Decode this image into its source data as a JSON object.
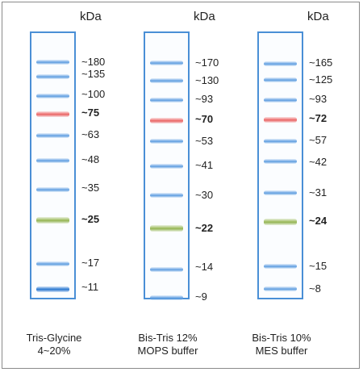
{
  "unit": "kDa",
  "panels": [
    {
      "caption_line1": "Tris-Glycine",
      "caption_line2": "4~20%",
      "markers": [
        {
          "label": "~180",
          "color": "blue",
          "bold": false
        },
        {
          "label": "~135",
          "color": "blue",
          "bold": false
        },
        {
          "label": "~100",
          "color": "blue",
          "bold": false
        },
        {
          "label": "~75",
          "color": "red",
          "bold": true
        },
        {
          "label": "~63",
          "color": "blue",
          "bold": false
        },
        {
          "label": "~48",
          "color": "blue",
          "bold": false
        },
        {
          "label": "~35",
          "color": "blue",
          "bold": false
        },
        {
          "label": "~25",
          "color": "green",
          "bold": true
        },
        {
          "label": "~17",
          "color": "blue",
          "bold": false
        },
        {
          "label": "~11",
          "color": "blue-strong",
          "bold": false
        }
      ]
    },
    {
      "caption_line1": "Bis-Tris 12%",
      "caption_line2": "MOPS buffer",
      "markers": [
        {
          "label": "~170",
          "color": "blue",
          "bold": false
        },
        {
          "label": "~130",
          "color": "blue",
          "bold": false
        },
        {
          "label": "~93",
          "color": "blue",
          "bold": false
        },
        {
          "label": "~70",
          "color": "red",
          "bold": true
        },
        {
          "label": "~53",
          "color": "blue",
          "bold": false
        },
        {
          "label": "~41",
          "color": "blue",
          "bold": false
        },
        {
          "label": "~30",
          "color": "blue",
          "bold": false
        },
        {
          "label": "~22",
          "color": "green",
          "bold": true
        },
        {
          "label": "~14",
          "color": "blue",
          "bold": false
        },
        {
          "label": "~9",
          "color": "blue",
          "bold": false
        }
      ]
    },
    {
      "caption_line1": "Bis-Tris 10%",
      "caption_line2": "MES buffer",
      "markers": [
        {
          "label": "~165",
          "color": "blue",
          "bold": false
        },
        {
          "label": "~125",
          "color": "blue",
          "bold": false
        },
        {
          "label": "~93",
          "color": "blue",
          "bold": false
        },
        {
          "label": "~72",
          "color": "red",
          "bold": true
        },
        {
          "label": "~57",
          "color": "blue",
          "bold": false
        },
        {
          "label": "~42",
          "color": "blue",
          "bold": false
        },
        {
          "label": "~31",
          "color": "blue",
          "bold": false
        },
        {
          "label": "~24",
          "color": "green",
          "bold": true
        },
        {
          "label": "~15",
          "color": "blue",
          "bold": false
        },
        {
          "label": "~8",
          "color": "blue",
          "bold": false
        }
      ]
    }
  ],
  "colors": {
    "lane_border": "#4a8fd6",
    "blue_band": "#78ade6",
    "red_band": "#f07a7a",
    "green_band": "#a4c168"
  }
}
